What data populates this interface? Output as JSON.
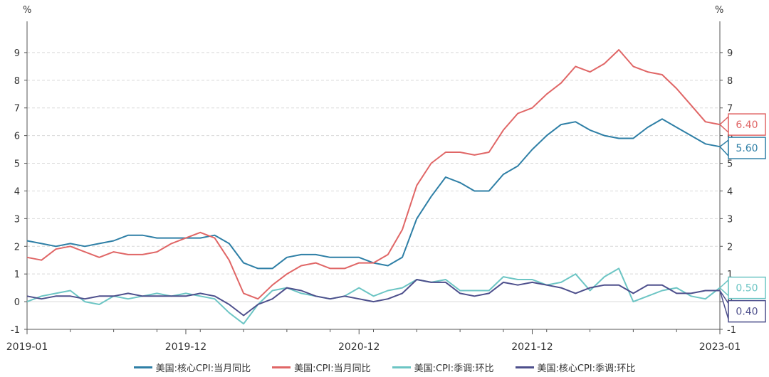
{
  "chart_data": {
    "type": "line",
    "y_unit_left": "%",
    "y_unit_right": "%",
    "ylim": [
      -1,
      10
    ],
    "yticks": [
      -1,
      0,
      1,
      2,
      3,
      4,
      5,
      6,
      7,
      8,
      9
    ],
    "x_start": "2019-01",
    "x_tick_labels": [
      {
        "label": "2019-01",
        "index": 0
      },
      {
        "label": "2019-12",
        "index": 11
      },
      {
        "label": "2020-12",
        "index": 23
      },
      {
        "label": "2021-12",
        "index": 35
      },
      {
        "label": "2023-01",
        "index": 48
      }
    ],
    "grid": "horizontal-dashed",
    "legend_position": "bottom",
    "series": [
      {
        "name": "美国:核心CPI:当月同比",
        "color": "#2e7fa6",
        "end_label": "5.60",
        "values": [
          2.2,
          2.1,
          2.0,
          2.1,
          2.0,
          2.1,
          2.2,
          2.4,
          2.4,
          2.3,
          2.3,
          2.3,
          2.3,
          2.4,
          2.1,
          1.4,
          1.2,
          1.2,
          1.6,
          1.7,
          1.7,
          1.6,
          1.6,
          1.6,
          1.4,
          1.3,
          1.6,
          3.0,
          3.8,
          4.5,
          4.3,
          4.0,
          4.0,
          4.6,
          4.9,
          5.5,
          6.0,
          6.4,
          6.5,
          6.2,
          6.0,
          5.9,
          5.9,
          6.3,
          6.6,
          6.3,
          6.0,
          5.7,
          5.6
        ]
      },
      {
        "name": "美国:CPI:当月同比",
        "color": "#e06666",
        "end_label": "6.40",
        "values": [
          1.6,
          1.5,
          1.9,
          2.0,
          1.8,
          1.6,
          1.8,
          1.7,
          1.7,
          1.8,
          2.1,
          2.3,
          2.5,
          2.3,
          1.5,
          0.3,
          0.1,
          0.6,
          1.0,
          1.3,
          1.4,
          1.2,
          1.2,
          1.4,
          1.4,
          1.7,
          2.6,
          4.2,
          5.0,
          5.4,
          5.4,
          5.3,
          5.4,
          6.2,
          6.8,
          7.0,
          7.5,
          7.9,
          8.5,
          8.3,
          8.6,
          9.1,
          8.5,
          8.3,
          8.2,
          7.7,
          7.1,
          6.5,
          6.4
        ]
      },
      {
        "name": "美国:CPI:季调:环比",
        "color": "#6cc5c4",
        "end_label": "0.50",
        "values": [
          0.0,
          0.2,
          0.3,
          0.4,
          0.0,
          -0.1,
          0.2,
          0.1,
          0.2,
          0.3,
          0.2,
          0.3,
          0.2,
          0.1,
          -0.4,
          -0.8,
          -0.1,
          0.4,
          0.5,
          0.3,
          0.2,
          0.1,
          0.2,
          0.5,
          0.2,
          0.4,
          0.5,
          0.8,
          0.7,
          0.8,
          0.4,
          0.4,
          0.4,
          0.9,
          0.8,
          0.8,
          0.6,
          0.7,
          1.0,
          0.4,
          0.9,
          1.2,
          0.0,
          0.2,
          0.4,
          0.5,
          0.2,
          0.1,
          0.5
        ]
      },
      {
        "name": "美国:核心CPI:季调:环比",
        "color": "#4d4f8c",
        "end_label": "0.40",
        "values": [
          0.2,
          0.1,
          0.2,
          0.2,
          0.1,
          0.2,
          0.2,
          0.3,
          0.2,
          0.2,
          0.2,
          0.2,
          0.3,
          0.2,
          -0.1,
          -0.5,
          -0.1,
          0.1,
          0.5,
          0.4,
          0.2,
          0.1,
          0.2,
          0.1,
          0.0,
          0.1,
          0.3,
          0.8,
          0.7,
          0.7,
          0.3,
          0.2,
          0.3,
          0.7,
          0.6,
          0.7,
          0.6,
          0.5,
          0.3,
          0.5,
          0.6,
          0.6,
          0.3,
          0.6,
          0.6,
          0.3,
          0.3,
          0.4,
          0.4
        ]
      }
    ]
  }
}
